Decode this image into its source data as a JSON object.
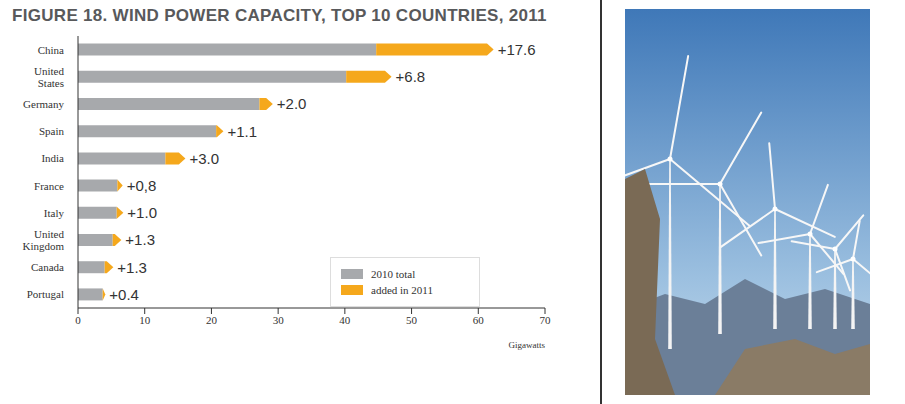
{
  "chart_data": {
    "type": "bar",
    "orientation": "horizontal",
    "stacked": true,
    "title": "FIGURE 18. WIND POWER CAPACITY, TOP 10 COUNTRIES, 2011",
    "x_label": "Gigawatts",
    "categories": [
      "China",
      "United States",
      "Germany",
      "Spain",
      "India",
      "France",
      "Italy",
      "United Kingdom",
      "Canada",
      "Portugal"
    ],
    "series": [
      {
        "name": "2010 total",
        "color": "#a7a9ac",
        "values": [
          44.7,
          40.2,
          27.2,
          20.7,
          13.1,
          5.9,
          5.8,
          5.2,
          4.0,
          3.7
        ]
      },
      {
        "name": "added in 2011",
        "color": "#f5a81c",
        "values": [
          17.6,
          6.8,
          2.0,
          1.1,
          3.0,
          0.8,
          1.0,
          1.3,
          1.3,
          0.4
        ],
        "value_labels": [
          "+17.6",
          "+6.8",
          "+2.0",
          "+1.1",
          "+3.0",
          "+0,8",
          "+1.0",
          "+1.3",
          "+1.3",
          "+0.4"
        ],
        "data_labels": true
      }
    ],
    "xlim": [
      0,
      70
    ],
    "xticks": [
      0,
      10,
      20,
      30,
      40,
      50,
      60,
      70
    ],
    "grid": false,
    "legend": "lower right"
  }
}
